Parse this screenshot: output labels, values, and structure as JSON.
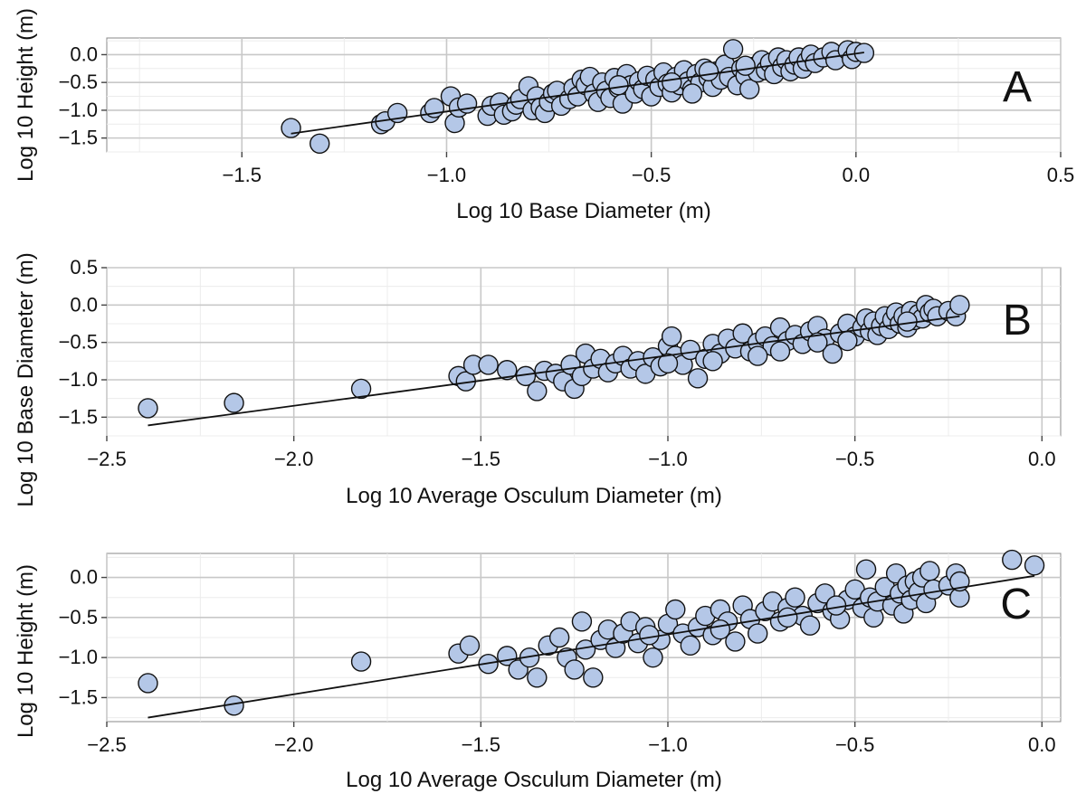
{
  "colors": {
    "point_fill": "#b4c7e7",
    "point_stroke": "#111111",
    "grid": "#c8c8c8",
    "panel_background": "#ffffff",
    "fit_line": "#111111"
  },
  "chart_data": [
    {
      "type": "scatter",
      "panel_label": "A",
      "xlabel": "Log 10 Base Diameter (m)",
      "ylabel": "Log 10 Height (m)",
      "xlim": [
        -1.83,
        0.5
      ],
      "ylim": [
        -1.75,
        0.3
      ],
      "xticks": [
        -1.5,
        -1.0,
        -0.5,
        0.0,
        0.5
      ],
      "xtick_labels": [
        "−1.5",
        "−1.0",
        "−0.5",
        "0.0",
        "0.5"
      ],
      "yticks": [
        -1.5,
        -1.0,
        -0.5,
        0.0
      ],
      "ytick_labels": [
        "−1.5",
        "−1.0",
        "−0.5",
        "0.0"
      ],
      "grid": true,
      "fit_line": {
        "x": [
          -1.38,
          0.02
        ],
        "y": [
          -1.42,
          0.04
        ]
      },
      "points": [
        [
          -1.38,
          -1.32
        ],
        [
          -1.31,
          -1.6
        ],
        [
          -1.16,
          -1.25
        ],
        [
          -1.15,
          -1.2
        ],
        [
          -1.12,
          -1.05
        ],
        [
          -1.04,
          -1.05
        ],
        [
          -1.03,
          -0.96
        ],
        [
          -0.99,
          -0.75
        ],
        [
          -0.98,
          -1.23
        ],
        [
          -0.97,
          -0.95
        ],
        [
          -0.95,
          -0.88
        ],
        [
          -0.9,
          -1.1
        ],
        [
          -0.89,
          -0.92
        ],
        [
          -0.87,
          -0.86
        ],
        [
          -0.86,
          -1.08
        ],
        [
          -0.84,
          -1.02
        ],
        [
          -0.83,
          -0.9
        ],
        [
          -0.82,
          -0.8
        ],
        [
          -0.8,
          -0.57
        ],
        [
          -0.79,
          -1.0
        ],
        [
          -0.78,
          -0.75
        ],
        [
          -0.77,
          -0.95
        ],
        [
          -0.76,
          -1.05
        ],
        [
          -0.75,
          -0.85
        ],
        [
          -0.74,
          -0.7
        ],
        [
          -0.73,
          -0.65
        ],
        [
          -0.72,
          -0.92
        ],
        [
          -0.7,
          -0.8
        ],
        [
          -0.69,
          -0.6
        ],
        [
          -0.68,
          -0.75
        ],
        [
          -0.67,
          -0.45
        ],
        [
          -0.66,
          -0.55
        ],
        [
          -0.65,
          -0.4
        ],
        [
          -0.64,
          -0.7
        ],
        [
          -0.63,
          -0.85
        ],
        [
          -0.62,
          -0.5
        ],
        [
          -0.61,
          -0.65
        ],
        [
          -0.6,
          -0.78
        ],
        [
          -0.59,
          -0.42
        ],
        [
          -0.58,
          -0.6
        ],
        [
          -0.57,
          -0.88
        ],
        [
          -0.56,
          -0.35
        ],
        [
          -0.55,
          -0.55
        ],
        [
          -0.54,
          -0.7
        ],
        [
          -0.53,
          -0.48
        ],
        [
          -0.52,
          -0.62
        ],
        [
          -0.51,
          -0.38
        ],
        [
          -0.5,
          -0.75
        ],
        [
          -0.49,
          -0.45
        ],
        [
          -0.48,
          -0.58
        ],
        [
          -0.47,
          -0.32
        ],
        [
          -0.46,
          -0.52
        ],
        [
          -0.45,
          -0.68
        ],
        [
          -0.44,
          -0.4
        ],
        [
          -0.43,
          -0.55
        ],
        [
          -0.42,
          -0.28
        ],
        [
          -0.41,
          -0.48
        ],
        [
          -0.4,
          -0.62
        ],
        [
          -0.39,
          -0.35
        ],
        [
          -0.38,
          -0.5
        ],
        [
          -0.37,
          -0.25
        ],
        [
          -0.36,
          -0.42
        ],
        [
          -0.35,
          -0.58
        ],
        [
          -0.34,
          -0.3
        ],
        [
          -0.33,
          -0.45
        ],
        [
          -0.32,
          -0.18
        ],
        [
          -0.31,
          -0.4
        ],
        [
          -0.3,
          0.1
        ],
        [
          -0.29,
          -0.55
        ],
        [
          -0.28,
          -0.25
        ],
        [
          -0.27,
          -0.38
        ],
        [
          -0.26,
          -0.62
        ],
        [
          -0.25,
          -0.22
        ],
        [
          -0.24,
          -0.32
        ],
        [
          -0.23,
          -0.1
        ],
        [
          -0.22,
          -0.28
        ],
        [
          -0.21,
          -0.15
        ],
        [
          -0.2,
          -0.35
        ],
        [
          -0.19,
          -0.05
        ],
        [
          -0.18,
          -0.22
        ],
        [
          -0.17,
          -0.1
        ],
        [
          -0.16,
          -0.3
        ],
        [
          -0.15,
          -0.18
        ],
        [
          -0.14,
          -0.05
        ],
        [
          -0.13,
          -0.25
        ],
        [
          -0.12,
          -0.12
        ],
        [
          -0.11,
          0.0
        ],
        [
          -0.1,
          -0.15
        ],
        [
          -0.08,
          -0.05
        ],
        [
          -0.06,
          0.05
        ],
        [
          -0.05,
          -0.1
        ],
        [
          -0.02,
          0.08
        ],
        [
          -0.01,
          -0.08
        ],
        [
          0.0,
          0.05
        ],
        [
          0.02,
          0.03
        ],
        [
          -0.45,
          -0.5
        ],
        [
          -0.36,
          -0.3
        ],
        [
          -0.27,
          -0.2
        ],
        [
          -0.4,
          -0.7
        ],
        [
          -0.58,
          -0.55
        ]
      ]
    },
    {
      "type": "scatter",
      "panel_label": "B",
      "xlabel": "Log 10 Average Osculum Diameter (m)",
      "ylabel": "Log 10 Base Diameter (m)",
      "xlim": [
        -2.5,
        0.05
      ],
      "ylim": [
        -1.75,
        0.5
      ],
      "xticks": [
        -2.5,
        -2.0,
        -1.5,
        -1.0,
        -0.5,
        0.0
      ],
      "xtick_labels": [
        "−2.5",
        "−2.0",
        "−1.5",
        "−1.0",
        "−0.5",
        "0.0"
      ],
      "yticks": [
        -1.5,
        -1.0,
        -0.5,
        0.0,
        0.5
      ],
      "ytick_labels": [
        "−1.5",
        "−1.0",
        "−0.5",
        "0.0",
        "0.5"
      ],
      "grid": true,
      "fit_line": {
        "x": [
          -2.39,
          -0.22
        ],
        "y": [
          -1.61,
          -0.15
        ]
      },
      "points": [
        [
          -2.39,
          -1.38
        ],
        [
          -2.16,
          -1.31
        ],
        [
          -1.82,
          -1.12
        ],
        [
          -1.56,
          -0.95
        ],
        [
          -1.54,
          -1.02
        ],
        [
          -1.52,
          -0.8
        ],
        [
          -1.48,
          -0.8
        ],
        [
          -1.43,
          -0.87
        ],
        [
          -1.38,
          -0.95
        ],
        [
          -1.35,
          -1.15
        ],
        [
          -1.33,
          -0.88
        ],
        [
          -1.3,
          -0.92
        ],
        [
          -1.28,
          -1.02
        ],
        [
          -1.26,
          -0.8
        ],
        [
          -1.25,
          -1.12
        ],
        [
          -1.23,
          -0.95
        ],
        [
          -1.22,
          -0.65
        ],
        [
          -1.2,
          -0.85
        ],
        [
          -1.18,
          -0.72
        ],
        [
          -1.16,
          -0.9
        ],
        [
          -1.14,
          -0.78
        ],
        [
          -1.12,
          -0.68
        ],
        [
          -1.1,
          -0.85
        ],
        [
          -1.08,
          -0.75
        ],
        [
          -1.06,
          -0.92
        ],
        [
          -1.04,
          -0.7
        ],
        [
          -1.02,
          -0.82
        ],
        [
          -1.0,
          -0.55
        ],
        [
          -0.99,
          -0.42
        ],
        [
          -0.98,
          -0.68
        ],
        [
          -0.96,
          -0.8
        ],
        [
          -0.94,
          -0.6
        ],
        [
          -0.92,
          -0.98
        ],
        [
          -0.9,
          -0.72
        ],
        [
          -0.88,
          -0.52
        ],
        [
          -0.86,
          -0.65
        ],
        [
          -0.84,
          -0.45
        ],
        [
          -0.82,
          -0.58
        ],
        [
          -0.8,
          -0.38
        ],
        [
          -0.78,
          -0.62
        ],
        [
          -0.76,
          -0.5
        ],
        [
          -0.74,
          -0.42
        ],
        [
          -0.72,
          -0.55
        ],
        [
          -0.7,
          -0.3
        ],
        [
          -0.68,
          -0.48
        ],
        [
          -0.66,
          -0.4
        ],
        [
          -0.64,
          -0.52
        ],
        [
          -0.62,
          -0.35
        ],
        [
          -0.6,
          -0.28
        ],
        [
          -0.58,
          -0.45
        ],
        [
          -0.56,
          -0.65
        ],
        [
          -0.54,
          -0.38
        ],
        [
          -0.52,
          -0.25
        ],
        [
          -0.5,
          -0.42
        ],
        [
          -0.48,
          -0.3
        ],
        [
          -0.47,
          -0.18
        ],
        [
          -0.46,
          -0.35
        ],
        [
          -0.45,
          -0.22
        ],
        [
          -0.44,
          -0.4
        ],
        [
          -0.43,
          -0.28
        ],
        [
          -0.42,
          -0.15
        ],
        [
          -0.41,
          -0.32
        ],
        [
          -0.4,
          -0.2
        ],
        [
          -0.39,
          -0.1
        ],
        [
          -0.38,
          -0.25
        ],
        [
          -0.37,
          -0.15
        ],
        [
          -0.36,
          -0.3
        ],
        [
          -0.35,
          -0.08
        ],
        [
          -0.34,
          -0.2
        ],
        [
          -0.33,
          -0.12
        ],
        [
          -0.32,
          -0.18
        ],
        [
          -0.31,
          0.0
        ],
        [
          -0.3,
          -0.1
        ],
        [
          -0.29,
          -0.05
        ],
        [
          -0.28,
          -0.15
        ],
        [
          -0.25,
          -0.08
        ],
        [
          -0.23,
          -0.15
        ],
        [
          -0.22,
          0.0
        ],
        [
          -0.6,
          -0.5
        ],
        [
          -0.7,
          -0.62
        ],
        [
          -0.88,
          -0.75
        ],
        [
          -1.0,
          -0.78
        ],
        [
          -0.76,
          -0.68
        ],
        [
          -0.52,
          -0.48
        ],
        [
          -0.36,
          -0.22
        ]
      ]
    },
    {
      "type": "scatter",
      "panel_label": "C",
      "xlabel": "Log 10 Average Osculum Diameter (m)",
      "ylabel": "Log 10 Height (m)",
      "xlim": [
        -2.5,
        0.05
      ],
      "ylim": [
        -1.8,
        0.3
      ],
      "xticks": [
        -2.5,
        -2.0,
        -1.5,
        -1.0,
        -0.5,
        0.0
      ],
      "xtick_labels": [
        "−2.5",
        "−2.0",
        "−1.5",
        "−1.0",
        "−0.5",
        "0.0"
      ],
      "yticks": [
        -1.5,
        -1.0,
        -0.5,
        0.0
      ],
      "ytick_labels": [
        "−1.5",
        "−1.0",
        "−0.5",
        "0.0"
      ],
      "grid": true,
      "fit_line": {
        "x": [
          -2.39,
          -0.02
        ],
        "y": [
          -1.75,
          0.02
        ]
      },
      "points": [
        [
          -2.39,
          -1.32
        ],
        [
          -2.16,
          -1.6
        ],
        [
          -1.82,
          -1.05
        ],
        [
          -1.56,
          -0.95
        ],
        [
          -1.53,
          -0.85
        ],
        [
          -1.48,
          -1.08
        ],
        [
          -1.43,
          -0.98
        ],
        [
          -1.4,
          -1.15
        ],
        [
          -1.37,
          -1.0
        ],
        [
          -1.35,
          -1.25
        ],
        [
          -1.32,
          -0.85
        ],
        [
          -1.29,
          -0.75
        ],
        [
          -1.27,
          -1.0
        ],
        [
          -1.25,
          -1.15
        ],
        [
          -1.23,
          -0.55
        ],
        [
          -1.22,
          -0.9
        ],
        [
          -1.2,
          -1.25
        ],
        [
          -1.18,
          -0.78
        ],
        [
          -1.16,
          -0.65
        ],
        [
          -1.14,
          -0.88
        ],
        [
          -1.12,
          -0.7
        ],
        [
          -1.1,
          -0.55
        ],
        [
          -1.08,
          -0.82
        ],
        [
          -1.06,
          -0.62
        ],
        [
          -1.04,
          -1.0
        ],
        [
          -1.02,
          -0.78
        ],
        [
          -1.0,
          -0.58
        ],
        [
          -0.98,
          -0.4
        ],
        [
          -0.96,
          -0.7
        ],
        [
          -0.94,
          -0.85
        ],
        [
          -0.92,
          -0.62
        ],
        [
          -0.9,
          -0.48
        ],
        [
          -0.88,
          -0.72
        ],
        [
          -0.86,
          -0.4
        ],
        [
          -0.84,
          -0.55
        ],
        [
          -0.82,
          -0.8
        ],
        [
          -0.8,
          -0.35
        ],
        [
          -0.78,
          -0.52
        ],
        [
          -0.76,
          -0.7
        ],
        [
          -0.74,
          -0.42
        ],
        [
          -0.72,
          -0.3
        ],
        [
          -0.7,
          -0.55
        ],
        [
          -0.68,
          -0.38
        ],
        [
          -0.66,
          -0.25
        ],
        [
          -0.64,
          -0.48
        ],
        [
          -0.62,
          -0.6
        ],
        [
          -0.6,
          -0.32
        ],
        [
          -0.58,
          -0.2
        ],
        [
          -0.56,
          -0.42
        ],
        [
          -0.54,
          -0.52
        ],
        [
          -0.52,
          -0.28
        ],
        [
          -0.5,
          -0.15
        ],
        [
          -0.48,
          -0.38
        ],
        [
          -0.47,
          0.1
        ],
        [
          -0.46,
          -0.25
        ],
        [
          -0.45,
          -0.5
        ],
        [
          -0.44,
          -0.3
        ],
        [
          -0.42,
          -0.12
        ],
        [
          -0.4,
          -0.35
        ],
        [
          -0.39,
          0.05
        ],
        [
          -0.38,
          -0.2
        ],
        [
          -0.37,
          -0.45
        ],
        [
          -0.36,
          -0.1
        ],
        [
          -0.35,
          -0.28
        ],
        [
          -0.34,
          -0.05
        ],
        [
          -0.33,
          -0.18
        ],
        [
          -0.32,
          0.0
        ],
        [
          -0.31,
          -0.32
        ],
        [
          -0.3,
          0.08
        ],
        [
          -0.29,
          -0.15
        ],
        [
          -0.25,
          -0.1
        ],
        [
          -0.23,
          0.05
        ],
        [
          -0.22,
          -0.25
        ],
        [
          -0.22,
          -0.05
        ],
        [
          -0.08,
          0.22
        ],
        [
          -0.02,
          0.15
        ],
        [
          -0.55,
          -0.35
        ],
        [
          -0.68,
          -0.5
        ],
        [
          -0.86,
          -0.65
        ],
        [
          -1.05,
          -0.72
        ]
      ]
    }
  ]
}
